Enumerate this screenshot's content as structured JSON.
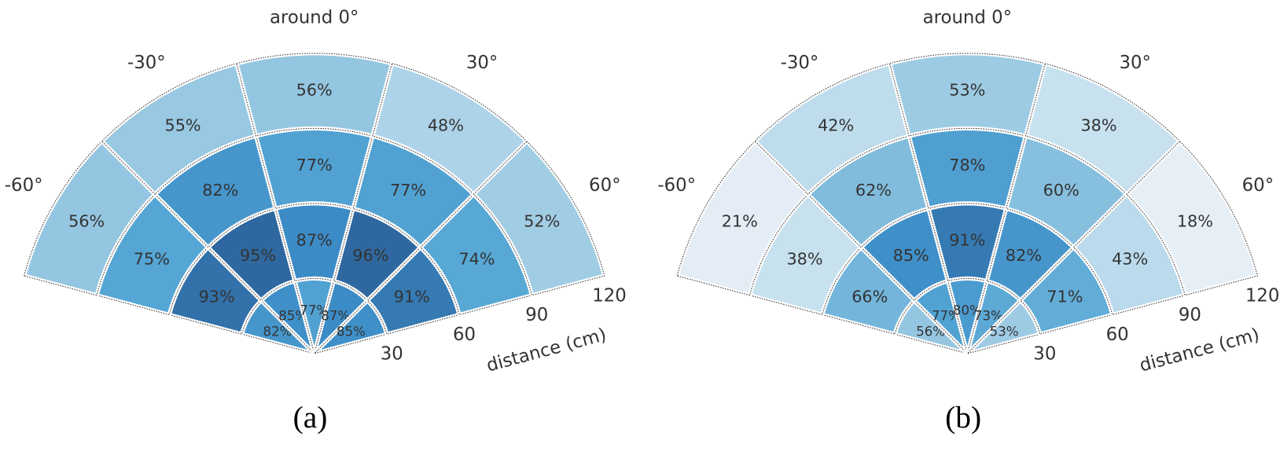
{
  "chart_data": [
    {
      "type": "heatmap",
      "title": "(a)",
      "categories": [
        "-60°",
        "-30°",
        "around 0°",
        "30°",
        "60°"
      ],
      "rlim": [
        0,
        120
      ],
      "rticks": [
        30,
        60,
        90,
        120
      ],
      "r_label": "distance (cm)",
      "values": [
        [
          82,
          85,
          77,
          87,
          85
        ],
        [
          93,
          95,
          87,
          96,
          91
        ],
        [
          75,
          82,
          77,
          77,
          74
        ],
        [
          56,
          55,
          56,
          48,
          52
        ]
      ],
      "value_labels": [
        [
          "82%",
          "85%",
          "77%",
          "87%",
          "85%"
        ],
        [
          "93%",
          "95%",
          "87%",
          "96%",
          "91%"
        ],
        [
          "75%",
          "82%",
          "77%",
          "77%",
          "74%"
        ],
        [
          "56%",
          "55%",
          "56%",
          "48%",
          "52%"
        ]
      ],
      "colorscale": [
        [
          20,
          "#e6eef6"
        ],
        [
          40,
          "#c4dfee"
        ],
        [
          55,
          "#98c8e2"
        ],
        [
          75,
          "#55a6d5"
        ],
        [
          87,
          "#3b8bc6"
        ],
        [
          95,
          "#2f68a0"
        ]
      ]
    },
    {
      "type": "heatmap",
      "title": "(b)",
      "categories": [
        "-60°",
        "-30°",
        "around 0°",
        "30°",
        "60°"
      ],
      "rlim": [
        0,
        120
      ],
      "rticks": [
        30,
        60,
        90,
        120
      ],
      "r_label": "distance (cm)",
      "values": [
        [
          56,
          77,
          80,
          73,
          53
        ],
        [
          66,
          85,
          91,
          82,
          71
        ],
        [
          38,
          62,
          78,
          60,
          43
        ],
        [
          21,
          42,
          53,
          38,
          18
        ]
      ],
      "value_labels": [
        [
          "56%",
          "77%",
          "80%",
          "73%",
          "53%"
        ],
        [
          "66%",
          "85%",
          "91%",
          "82%",
          "71%"
        ],
        [
          "38%",
          "62%",
          "78%",
          "60%",
          "43%"
        ],
        [
          "21%",
          "42%",
          "53%",
          "38%",
          "18%"
        ]
      ],
      "colorscale": [
        [
          20,
          "#e6eef6"
        ],
        [
          40,
          "#c4dfee"
        ],
        [
          55,
          "#98c8e2"
        ],
        [
          75,
          "#55a6d5"
        ],
        [
          87,
          "#3b8bc6"
        ],
        [
          95,
          "#2f68a0"
        ]
      ]
    }
  ]
}
